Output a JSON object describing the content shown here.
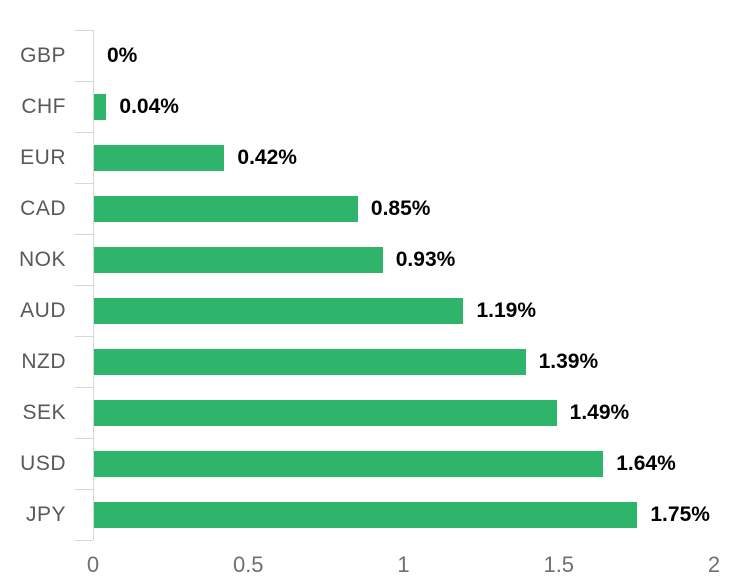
{
  "chart_data": {
    "type": "bar",
    "orientation": "horizontal",
    "title": "",
    "xlabel": "",
    "ylabel": "",
    "categories": [
      "GBP",
      "CHF",
      "EUR",
      "CAD",
      "NOK",
      "AUD",
      "NZD",
      "SEK",
      "USD",
      "JPY"
    ],
    "values": [
      0,
      0.04,
      0.42,
      0.85,
      0.93,
      1.19,
      1.39,
      1.49,
      1.64,
      1.75
    ],
    "data_labels": [
      "0%",
      "0.04%",
      "0.42%",
      "0.85%",
      "0.93%",
      "1.19%",
      "1.39%",
      "1.49%",
      "1.64%",
      "1.75%"
    ],
    "xlim": [
      0,
      2
    ],
    "x_tick_values": [
      0,
      0.5,
      1,
      1.5,
      2
    ],
    "x_tick_labels": [
      "0",
      "0.5",
      "1",
      "1.5",
      "2"
    ],
    "grid": false,
    "legend": false,
    "colors": {
      "bar": "#2fb56b",
      "value_label": "#000000",
      "category_label": "#595959",
      "axis_line": "#d6d6d6",
      "tick_label": "#707070",
      "background": "#ffffff"
    }
  }
}
